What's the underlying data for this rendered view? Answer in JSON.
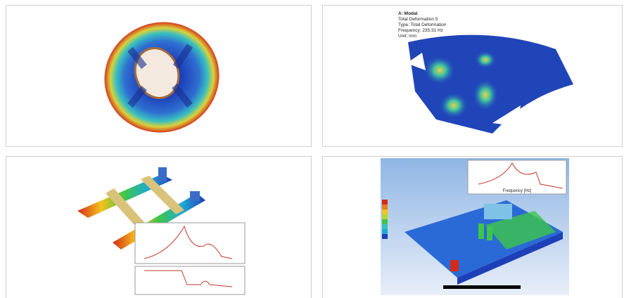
{
  "modal_annotation": {
    "title": "A: Modal",
    "lines": [
      "Total Deformation 5",
      "Type: Total Deformation",
      "Frequency: 235.31 Hz",
      "Unit: mm"
    ]
  },
  "frequency_plot": {
    "x_label": "Frequency [Hz]"
  }
}
